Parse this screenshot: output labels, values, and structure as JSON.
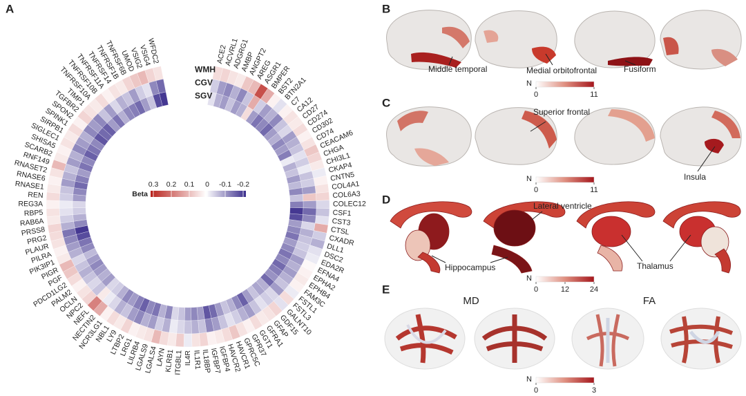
{
  "panels": {
    "A": {
      "label": "A",
      "rows": [
        "WMH",
        "CGV",
        "SGV"
      ],
      "legend": {
        "title": "Beta",
        "ticks": [
          0.3,
          0.2,
          0.1,
          0,
          -0.1,
          -0.2
        ]
      },
      "genes": [
        {
          "name": "ACE2",
          "beta": [
            0.05,
            -0.05,
            -0.03
          ]
        },
        {
          "name": "ACVRL1",
          "beta": [
            0.06,
            -0.1,
            -0.08
          ]
        },
        {
          "name": "ADGRG1",
          "beta": [
            0.04,
            -0.12,
            -0.1
          ]
        },
        {
          "name": "AMBP",
          "beta": [
            0.03,
            -0.08,
            -0.06
          ]
        },
        {
          "name": "ANGPT2",
          "beta": [
            0.08,
            -0.12,
            -0.1
          ]
        },
        {
          "name": "AREG",
          "beta": [
            0.1,
            -0.06,
            -0.08
          ]
        },
        {
          "name": "ASGR1",
          "beta": [
            0.25,
            0.12,
            0.05
          ]
        },
        {
          "name": "BMPER",
          "beta": [
            0.12,
            -0.05,
            -0.1
          ]
        },
        {
          "name": "BST2",
          "beta": [
            0.02,
            -0.1,
            -0.14
          ]
        },
        {
          "name": "BTN2A1",
          "beta": [
            -0.03,
            -0.08,
            -0.12
          ]
        },
        {
          "name": "C7",
          "beta": [
            0.02,
            -0.12,
            -0.15
          ]
        },
        {
          "name": "CA12",
          "beta": [
            0.04,
            -0.06,
            -0.1
          ]
        },
        {
          "name": "CD27",
          "beta": [
            0.03,
            -0.04,
            -0.08
          ]
        },
        {
          "name": "CD274",
          "beta": [
            0.05,
            -0.1,
            -0.12
          ]
        },
        {
          "name": "CD302",
          "beta": [
            0.02,
            -0.08,
            -0.1
          ]
        },
        {
          "name": "CD74",
          "beta": [
            0.04,
            -0.06,
            -0.13
          ]
        },
        {
          "name": "CEACAM6",
          "beta": [
            0.08,
            -0.03,
            -0.02
          ]
        },
        {
          "name": "CHGA",
          "beta": [
            0.06,
            -0.05,
            -0.08
          ]
        },
        {
          "name": "CHI3L1",
          "beta": [
            0.03,
            -0.02,
            -0.06
          ]
        },
        {
          "name": "CKAP4",
          "beta": [
            -0.02,
            -0.06,
            -0.1
          ]
        },
        {
          "name": "CNTN5",
          "beta": [
            0.02,
            -0.05,
            -0.07
          ]
        },
        {
          "name": "COL4A1",
          "beta": [
            0.04,
            -0.1,
            -0.12
          ]
        },
        {
          "name": "COL6A3",
          "beta": [
            0.06,
            0.08,
            -0.06
          ]
        },
        {
          "name": "COLEC12",
          "beta": [
            -0.04,
            -0.1,
            -0.13
          ]
        },
        {
          "name": "CSF1",
          "beta": [
            -0.06,
            -0.15,
            -0.2
          ]
        },
        {
          "name": "CST3",
          "beta": [
            -0.03,
            -0.12,
            -0.18
          ]
        },
        {
          "name": "CTSL",
          "beta": [
            0.12,
            -0.04,
            -0.1
          ]
        },
        {
          "name": "CXADR",
          "beta": [
            -0.05,
            -0.08,
            -0.12
          ]
        },
        {
          "name": "DLL1",
          "beta": [
            -0.08,
            -0.06,
            -0.14
          ]
        },
        {
          "name": "DSC2",
          "beta": [
            -0.03,
            -0.05,
            -0.1
          ]
        },
        {
          "name": "EDA2R",
          "beta": [
            -0.02,
            -0.06,
            -0.12
          ]
        },
        {
          "name": "EFNA4",
          "beta": [
            0.01,
            -0.1,
            -0.14
          ]
        },
        {
          "name": "EPHA2",
          "beta": [
            0.02,
            -0.08,
            -0.12
          ]
        },
        {
          "name": "EPHB4",
          "beta": [
            0.03,
            -0.1,
            -0.15
          ]
        },
        {
          "name": "FAM3C",
          "beta": [
            0.02,
            -0.08,
            -0.13
          ]
        },
        {
          "name": "FSTL1",
          "beta": [
            -0.02,
            -0.06,
            -0.11
          ]
        },
        {
          "name": "FSTL3",
          "beta": [
            0.05,
            -0.1,
            -0.15
          ]
        },
        {
          "name": "GALNT10",
          "beta": [
            -0.03,
            -0.04,
            -0.08
          ]
        },
        {
          "name": "GDF15",
          "beta": [
            0.06,
            -0.05,
            -0.09
          ]
        },
        {
          "name": "GFAP",
          "beta": [
            0.04,
            -0.03,
            -0.06
          ]
        },
        {
          "name": "GFRA1",
          "beta": [
            0.03,
            -0.06,
            -0.1
          ]
        },
        {
          "name": "GGT1",
          "beta": [
            0.05,
            -0.1,
            -0.16
          ]
        },
        {
          "name": "GPR37",
          "beta": [
            0.02,
            -0.08,
            -0.12
          ]
        },
        {
          "name": "GPRC5C",
          "beta": [
            0.04,
            -0.05,
            -0.08
          ]
        },
        {
          "name": "HAVCR1",
          "beta": [
            0.08,
            -0.03,
            -0.06
          ]
        },
        {
          "name": "HAVCR2",
          "beta": [
            0.05,
            -0.06,
            -0.1
          ]
        },
        {
          "name": "IGFBP4",
          "beta": [
            0.03,
            -0.1,
            -0.15
          ]
        },
        {
          "name": "IGFBP7",
          "beta": [
            0.02,
            -0.12,
            -0.17
          ]
        },
        {
          "name": "IL18BP",
          "beta": [
            0.06,
            -0.06,
            -0.1
          ]
        },
        {
          "name": "IL1R1",
          "beta": [
            0.04,
            -0.08,
            -0.12
          ]
        },
        {
          "name": "IL4R",
          "beta": [
            -0.02,
            -0.06,
            -0.1
          ]
        },
        {
          "name": "ITGBL1",
          "beta": [
            0.07,
            -0.04,
            -0.06
          ]
        },
        {
          "name": "KLRB1",
          "beta": [
            0.03,
            -0.02,
            -0.04
          ]
        },
        {
          "name": "LAYN",
          "beta": [
            0.05,
            -0.08,
            -0.12
          ]
        },
        {
          "name": "LGALS4",
          "beta": [
            0.1,
            -0.05,
            -0.08
          ]
        },
        {
          "name": "LGALS9",
          "beta": [
            0.04,
            -0.1,
            -0.14
          ]
        },
        {
          "name": "LILRB4",
          "beta": [
            0.03,
            -0.08,
            -0.12
          ]
        },
        {
          "name": "LRG1",
          "beta": [
            0.02,
            -0.12,
            -0.16
          ]
        },
        {
          "name": "LTBP2",
          "beta": [
            0.06,
            -0.1,
            -0.13
          ]
        },
        {
          "name": "LY9",
          "beta": [
            0.03,
            -0.06,
            -0.1
          ]
        },
        {
          "name": "NBL1",
          "beta": [
            0.05,
            -0.08,
            -0.12
          ]
        },
        {
          "name": "NCR3LG1",
          "beta": [
            0.02,
            -0.04,
            -0.08
          ]
        },
        {
          "name": "NECTIN2",
          "beta": [
            0.12,
            -0.02,
            -0.05
          ]
        },
        {
          "name": "NEFL",
          "beta": [
            0.18,
            0.03,
            -0.04
          ]
        },
        {
          "name": "NPC2",
          "beta": [
            0.06,
            -0.06,
            -0.1
          ]
        },
        {
          "name": "OCLN",
          "beta": [
            0.04,
            -0.04,
            -0.08
          ]
        },
        {
          "name": "PALM2",
          "beta": [
            0.02,
            -0.06,
            -0.1
          ]
        },
        {
          "name": "PDCD1LG2",
          "beta": [
            0.05,
            -0.08,
            -0.12
          ]
        },
        {
          "name": "PGF",
          "beta": [
            0.08,
            -0.06,
            -0.1
          ]
        },
        {
          "name": "PIGR",
          "beta": [
            0.1,
            -0.04,
            -0.07
          ]
        },
        {
          "name": "PIK3IP1",
          "beta": [
            0.03,
            -0.08,
            -0.12
          ]
        },
        {
          "name": "PILRA",
          "beta": [
            0.02,
            -0.1,
            -0.14
          ]
        },
        {
          "name": "PLAUR",
          "beta": [
            0.04,
            -0.12,
            -0.18
          ]
        },
        {
          "name": "PRG2",
          "beta": [
            0.05,
            -0.14,
            -0.2
          ]
        },
        {
          "name": "PRSS8",
          "beta": [
            0.06,
            -0.08,
            -0.12
          ]
        },
        {
          "name": "RAB6A",
          "beta": [
            0.03,
            -0.05,
            -0.08
          ]
        },
        {
          "name": "RBP5",
          "beta": [
            0.04,
            -0.03,
            -0.05
          ]
        },
        {
          "name": "REG3A",
          "beta": [
            0.02,
            -0.02,
            -0.04
          ]
        },
        {
          "name": "REN",
          "beta": [
            0.05,
            -0.05,
            -0.1
          ]
        },
        {
          "name": "RNASE1",
          "beta": [
            0.03,
            -0.06,
            -0.12
          ]
        },
        {
          "name": "RNASE6",
          "beta": [
            0.02,
            -0.1,
            -0.15
          ]
        },
        {
          "name": "RNASET2",
          "beta": [
            0.04,
            -0.08,
            -0.13
          ]
        },
        {
          "name": "RNF149",
          "beta": [
            0.1,
            -0.06,
            -0.1
          ]
        },
        {
          "name": "SCARB2",
          "beta": [
            0.03,
            -0.1,
            -0.14
          ]
        },
        {
          "name": "SHISA5",
          "beta": [
            0.02,
            -0.08,
            -0.12
          ]
        },
        {
          "name": "SIGLEC1",
          "beta": [
            0.04,
            -0.12,
            -0.16
          ]
        },
        {
          "name": "SIRPB1",
          "beta": [
            0.03,
            -0.1,
            -0.14
          ]
        },
        {
          "name": "SPINK1",
          "beta": [
            0.05,
            -0.08,
            -0.12
          ]
        },
        {
          "name": "SPON2",
          "beta": [
            0.02,
            -0.12,
            -0.17
          ]
        },
        {
          "name": "TGFBR2",
          "beta": [
            0.06,
            -0.1,
            -0.15
          ]
        },
        {
          "name": "TIMP1",
          "beta": [
            0.04,
            -0.12,
            -0.16
          ]
        },
        {
          "name": "TNFRSF10A",
          "beta": [
            0.03,
            -0.06,
            -0.1
          ]
        },
        {
          "name": "TNFRSF10B",
          "beta": [
            0.05,
            -0.1,
            -0.14
          ]
        },
        {
          "name": "TNFRSF11A",
          "beta": [
            0.02,
            -0.04,
            -0.08
          ]
        },
        {
          "name": "TNFRSF14",
          "beta": [
            0.04,
            -0.08,
            -0.12
          ]
        },
        {
          "name": "TNFRSF1B",
          "beta": [
            0.03,
            -0.06,
            -0.13
          ]
        },
        {
          "name": "TNFRSF6B",
          "beta": [
            0.06,
            -0.1,
            -0.15
          ]
        },
        {
          "name": "UMOD",
          "beta": [
            0.08,
            -0.05,
            -0.1
          ]
        },
        {
          "name": "VSIG2",
          "beta": [
            0.1,
            -0.03,
            -0.06
          ]
        },
        {
          "name": "VSIG4",
          "beta": [
            0.06,
            -0.12,
            -0.18
          ]
        },
        {
          "name": "WFDC2",
          "beta": [
            0.04,
            -0.15,
            -0.2
          ]
        }
      ]
    },
    "B": {
      "label": "B",
      "annotations": [
        "Middle temporal",
        "Medial orbitofrontal",
        "Fusiform"
      ],
      "colorbar": {
        "title": "N",
        "ticks": [
          0,
          11
        ]
      }
    },
    "C": {
      "label": "C",
      "annotations": [
        "Superior frontal",
        "Insula"
      ],
      "colorbar": {
        "title": "N",
        "ticks": [
          0,
          11
        ]
      }
    },
    "D": {
      "label": "D",
      "annotations": [
        "Lateral ventricle",
        "Hippocampus",
        "Thalamus"
      ],
      "colorbar": {
        "title": "N",
        "ticks": [
          0,
          12,
          24
        ]
      }
    },
    "E": {
      "label": "E",
      "titles": [
        "MD",
        "FA"
      ],
      "colorbar": {
        "title": "N",
        "ticks": [
          0,
          3
        ]
      }
    }
  }
}
